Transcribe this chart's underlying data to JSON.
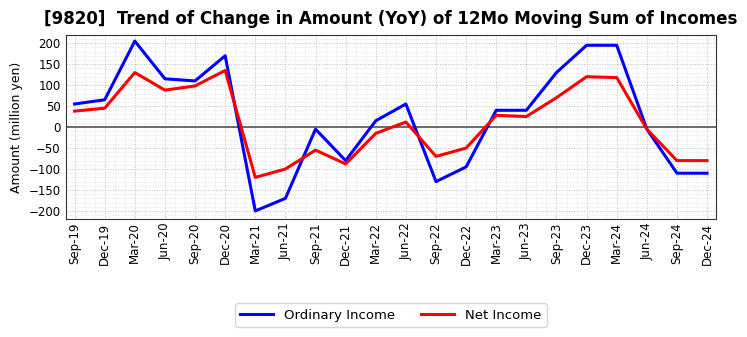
{
  "title": "[9820]  Trend of Change in Amount (YoY) of 12Mo Moving Sum of Incomes",
  "ylabel": "Amount (million yen)",
  "x_labels": [
    "Sep-19",
    "Dec-19",
    "Mar-20",
    "Jun-20",
    "Sep-20",
    "Dec-20",
    "Mar-21",
    "Jun-21",
    "Sep-21",
    "Dec-21",
    "Mar-22",
    "Jun-22",
    "Sep-22",
    "Dec-22",
    "Mar-23",
    "Jun-23",
    "Sep-23",
    "Dec-23",
    "Mar-24",
    "Jun-24",
    "Sep-24",
    "Dec-24"
  ],
  "ordinary_income": [
    55,
    65,
    205,
    115,
    110,
    170,
    -200,
    -170,
    -5,
    -80,
    15,
    55,
    -130,
    -95,
    40,
    40,
    130,
    195,
    195,
    -5,
    -110,
    -110
  ],
  "net_income": [
    38,
    45,
    130,
    88,
    98,
    135,
    -120,
    -100,
    -55,
    -88,
    -15,
    12,
    -70,
    -50,
    28,
    25,
    70,
    120,
    118,
    -5,
    -80,
    -80
  ],
  "ordinary_color": "#0000ff",
  "net_color": "#ff0000",
  "ylim": [
    -220,
    220
  ],
  "yticks": [
    -200,
    -150,
    -100,
    -50,
    0,
    50,
    100,
    150,
    200
  ],
  "grid_color": "#aaaaaa",
  "background_color": "#ffffff",
  "legend_labels": [
    "Ordinary Income",
    "Net Income"
  ],
  "title_fontsize": 12,
  "axis_fontsize": 9,
  "tick_fontsize": 8.5
}
